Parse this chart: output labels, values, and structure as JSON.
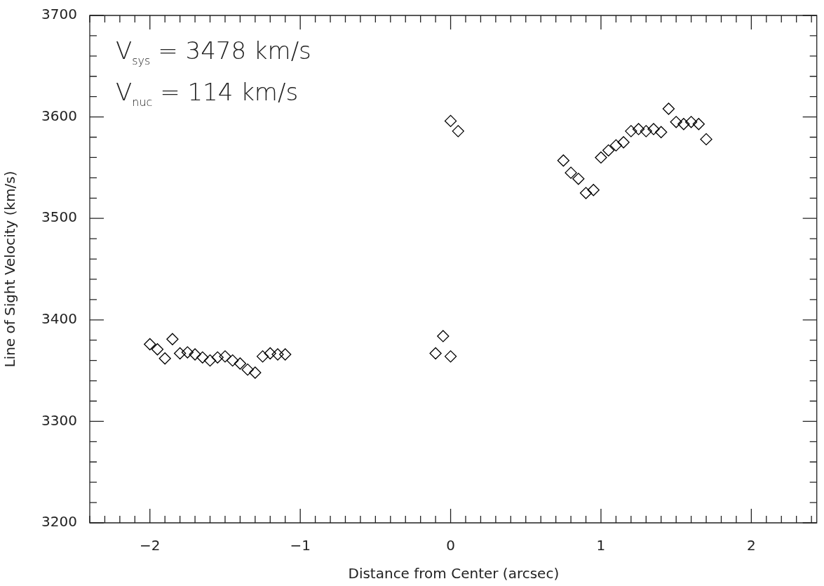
{
  "chart_data": {
    "type": "scatter",
    "xlabel": "Distance from Center (arcsec)",
    "ylabel": "Line of Sight Velocity (km/s)",
    "annotations": [
      "V$_{sys}$ = 3478 km/s",
      "V$_{nuc}$ = 114 km/s"
    ],
    "x": [
      -2.0,
      -1.95,
      -1.9,
      -1.85,
      -1.8,
      -1.75,
      -1.7,
      -1.65,
      -1.6,
      -1.55,
      -1.5,
      -1.45,
      -1.4,
      -1.35,
      -1.3,
      -1.25,
      -1.2,
      -1.15,
      -1.1,
      -0.1,
      -0.05,
      0.0,
      0.0,
      0.05,
      0.75,
      0.8,
      0.85,
      0.9,
      0.95,
      1.0,
      1.05,
      1.1,
      1.15,
      1.2,
      1.25,
      1.3,
      1.35,
      1.4,
      1.45,
      1.5,
      1.55,
      1.6,
      1.65,
      1.7
    ],
    "series": [
      {
        "color": "#000000",
        "values": [
          3376,
          3371,
          3362,
          3381,
          3367,
          3368,
          3366,
          3363,
          3360,
          3363,
          3364,
          3360,
          3357,
          3351,
          3348,
          3364,
          3367,
          3366,
          3366,
          3367,
          3384,
          3364,
          3596,
          3586,
          3557,
          3545,
          3539,
          3525,
          3528,
          3560,
          3567,
          3572,
          3575,
          3586,
          3588,
          3586,
          3588,
          3585,
          3608,
          3595,
          3593,
          3595,
          3593,
          3578
        ]
      }
    ],
    "marker": "diamond",
    "xlim": [
      -2.4,
      2.44
    ],
    "xticks": [
      {
        "value": -2.4,
        "label": null
      },
      {
        "value": -2.3,
        "label": null
      },
      {
        "value": -2.2,
        "label": null
      },
      {
        "value": -2.1,
        "label": null
      },
      {
        "value": -2,
        "label": "−2"
      },
      {
        "value": -1.9,
        "label": null
      },
      {
        "value": -1.8,
        "label": null
      },
      {
        "value": -1.7,
        "label": null
      },
      {
        "value": -1.6,
        "label": null
      },
      {
        "value": -1.5,
        "label": null
      },
      {
        "value": -1.4,
        "label": null
      },
      {
        "value": -1.3,
        "label": null
      },
      {
        "value": -1.2,
        "label": null
      },
      {
        "value": -1.1,
        "label": null
      },
      {
        "value": -1,
        "label": "−1"
      },
      {
        "value": -0.9,
        "label": null
      },
      {
        "value": -0.8,
        "label": null
      },
      {
        "value": -0.7,
        "label": null
      },
      {
        "value": -0.6,
        "label": null
      },
      {
        "value": -0.5,
        "label": null
      },
      {
        "value": -0.4,
        "label": null
      },
      {
        "value": -0.3,
        "label": null
      },
      {
        "value": -0.2,
        "label": null
      },
      {
        "value": -0.1,
        "label": null
      },
      0,
      {
        "value": 0.1,
        "label": null
      },
      {
        "value": 0.2,
        "label": null
      },
      {
        "value": 0.3,
        "label": null
      },
      {
        "value": 0.4,
        "label": null
      },
      {
        "value": 0.5,
        "label": null
      },
      {
        "value": 0.6,
        "label": null
      },
      {
        "value": 0.7,
        "label": null
      },
      {
        "value": 0.8,
        "label": null
      },
      {
        "value": 0.9,
        "label": null
      },
      1,
      {
        "value": 1.1,
        "label": null
      },
      {
        "value": 1.2,
        "label": null
      },
      {
        "value": 1.3,
        "label": null
      },
      {
        "value": 1.4,
        "label": null
      },
      {
        "value": 1.5,
        "label": null
      },
      {
        "value": 1.6,
        "label": null
      },
      {
        "value": 1.7,
        "label": null
      },
      {
        "value": 1.8,
        "label": null
      },
      {
        "value": 1.9,
        "label": null
      },
      2,
      {
        "value": 2.1,
        "label": null
      },
      {
        "value": 2.2,
        "label": null
      },
      {
        "value": 2.3,
        "label": null
      },
      {
        "value": 2.4,
        "label": null
      }
    ],
    "ylim": [
      3200,
      3700
    ],
    "yticks": [
      3200,
      {
        "value": 3220,
        "label": null
      },
      {
        "value": 3240,
        "label": null
      },
      {
        "value": 3260,
        "label": null
      },
      {
        "value": 3280,
        "label": null
      },
      3300,
      {
        "value": 3320,
        "label": null
      },
      {
        "value": 3340,
        "label": null
      },
      {
        "value": 3360,
        "label": null
      },
      {
        "value": 3380,
        "label": null
      },
      3400,
      {
        "value": 3420,
        "label": null
      },
      {
        "value": 3440,
        "label": null
      },
      {
        "value": 3460,
        "label": null
      },
      {
        "value": 3480,
        "label": null
      },
      3500,
      {
        "value": 3520,
        "label": null
      },
      {
        "value": 3540,
        "label": null
      },
      {
        "value": 3560,
        "label": null
      },
      {
        "value": 3580,
        "label": null
      },
      3600,
      {
        "value": 3620,
        "label": null
      },
      {
        "value": 3640,
        "label": null
      },
      {
        "value": 3660,
        "label": null
      },
      {
        "value": 3680,
        "label": null
      },
      3700
    ]
  }
}
